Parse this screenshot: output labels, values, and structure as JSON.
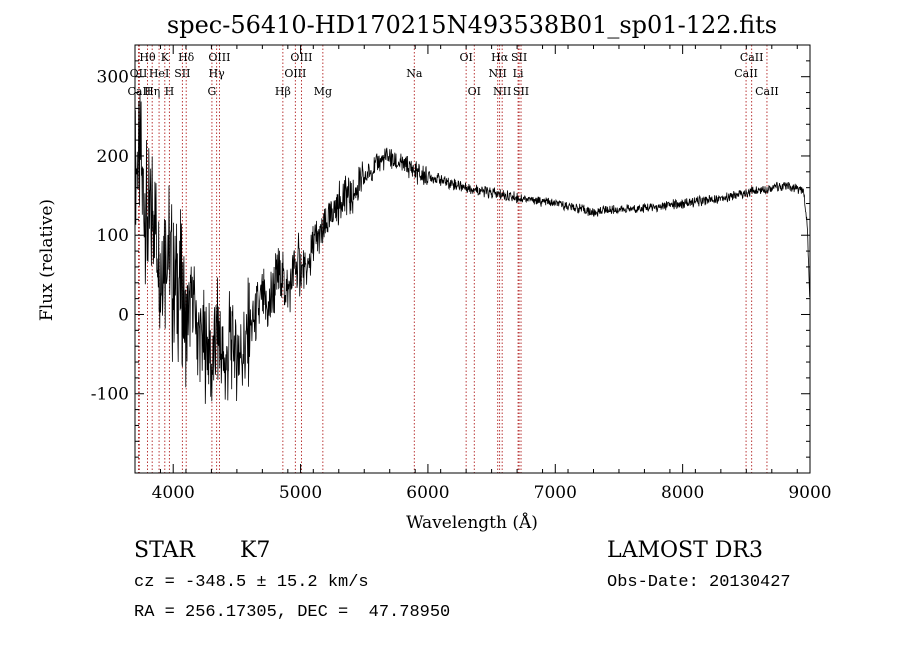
{
  "chart_data": {
    "type": "line",
    "title": "spec-56410-HD170215N493538B01_sp01-122.fits",
    "xlabel": "Wavelength (Å)",
    "ylabel": "Flux (relative)",
    "xlim": [
      3700,
      9000
    ],
    "ylim": [
      -200,
      340
    ],
    "grid": false,
    "x_ticks": [
      4000,
      5000,
      6000,
      7000,
      8000,
      9000
    ],
    "y_ticks": [
      -100,
      0,
      100,
      200,
      300
    ],
    "series": [
      {
        "name": "",
        "color": "#000000",
        "x": [
          3700,
          3750,
          3800,
          3850,
          3900,
          3950,
          4000,
          4050,
          4100,
          4150,
          4200,
          4250,
          4300,
          4350,
          4400,
          4450,
          4500,
          4550,
          4600,
          4650,
          4700,
          4750,
          4800,
          4850,
          4900,
          4950,
          5000,
          5050,
          5100,
          5150,
          5200,
          5250,
          5300,
          5350,
          5400,
          5450,
          5500,
          5550,
          5600,
          5650,
          5700,
          5750,
          5800,
          5850,
          5900,
          5950,
          6000,
          6100,
          6200,
          6300,
          6400,
          6500,
          6600,
          6700,
          6800,
          6900,
          7000,
          7100,
          7200,
          7300,
          7400,
          7500,
          7600,
          7700,
          7800,
          7900,
          8000,
          8100,
          8200,
          8300,
          8400,
          8500,
          8600,
          8700,
          8800,
          8900,
          8950,
          8980,
          9000
        ],
        "y": [
          200,
          180,
          120,
          140,
          60,
          90,
          30,
          40,
          -20,
          20,
          -30,
          -40,
          -60,
          -20,
          -70,
          -30,
          -50,
          -40,
          -20,
          0,
          20,
          10,
          40,
          50,
          30,
          60,
          60,
          50,
          90,
          100,
          110,
          130,
          140,
          150,
          150,
          160,
          170,
          180,
          190,
          195,
          200,
          190,
          190,
          185,
          180,
          175,
          175,
          170,
          165,
          160,
          157,
          153,
          150,
          148,
          145,
          142,
          140,
          137,
          133,
          128,
          132,
          132,
          133,
          135,
          135,
          138,
          140,
          142,
          145,
          147,
          150,
          153,
          157,
          160,
          162,
          158,
          155,
          110,
          10
        ]
      }
    ],
    "lines": [
      {
        "label": "Hθ",
        "x": 3798,
        "row": 1
      },
      {
        "label": "OII",
        "x": 3727,
        "row": 2
      },
      {
        "label": "CaII",
        "x": 3734,
        "row": 3
      },
      {
        "label": "K",
        "x": 3934,
        "row": 1
      },
      {
        "label": "HeI",
        "x": 3889,
        "row": 2
      },
      {
        "label": "Hη",
        "x": 3835,
        "row": 3
      },
      {
        "label": "H",
        "x": 3970,
        "row": 3
      },
      {
        "label": "SII",
        "x": 4072,
        "row": 2
      },
      {
        "label": "Hδ",
        "x": 4102,
        "row": 1
      },
      {
        "label": "OIII",
        "x": 4363,
        "row": 1
      },
      {
        "label": "Hγ",
        "x": 4341,
        "row": 2
      },
      {
        "label": "G",
        "x": 4304,
        "row": 3
      },
      {
        "label": "Hβ",
        "x": 4861,
        "row": 3
      },
      {
        "label": "OIII",
        "x": 5007,
        "row": 1
      },
      {
        "label": "OIII",
        "x": 4959,
        "row": 2
      },
      {
        "label": "Mg",
        "x": 5175,
        "row": 3
      },
      {
        "label": "Na",
        "x": 5893,
        "row": 2
      },
      {
        "label": "OI",
        "x": 6300,
        "row": 1
      },
      {
        "label": "OI",
        "x": 6364,
        "row": 3
      },
      {
        "label": "Hα",
        "x": 6563,
        "row": 1
      },
      {
        "label": "NII",
        "x": 6548,
        "row": 2
      },
      {
        "label": "NII",
        "x": 6583,
        "row": 3
      },
      {
        "label": "SII",
        "x": 6716,
        "row": 1
      },
      {
        "label": "Li",
        "x": 6708,
        "row": 2
      },
      {
        "label": "SII",
        "x": 6731,
        "row": 3
      },
      {
        "label": "CaII",
        "x": 8542,
        "row": 1
      },
      {
        "label": "CaII",
        "x": 8498,
        "row": 2
      },
      {
        "label": "CaII",
        "x": 8662,
        "row": 3
      }
    ]
  },
  "info": {
    "object_class": "STAR",
    "subclass": "K7",
    "survey": "LAMOST DR3",
    "cz": "cz = -348.5 ± 15.2 km/s",
    "obs_date": "Obs-Date: 20130427",
    "radec": "RA = 256.17305, DEC =  47.78950"
  }
}
